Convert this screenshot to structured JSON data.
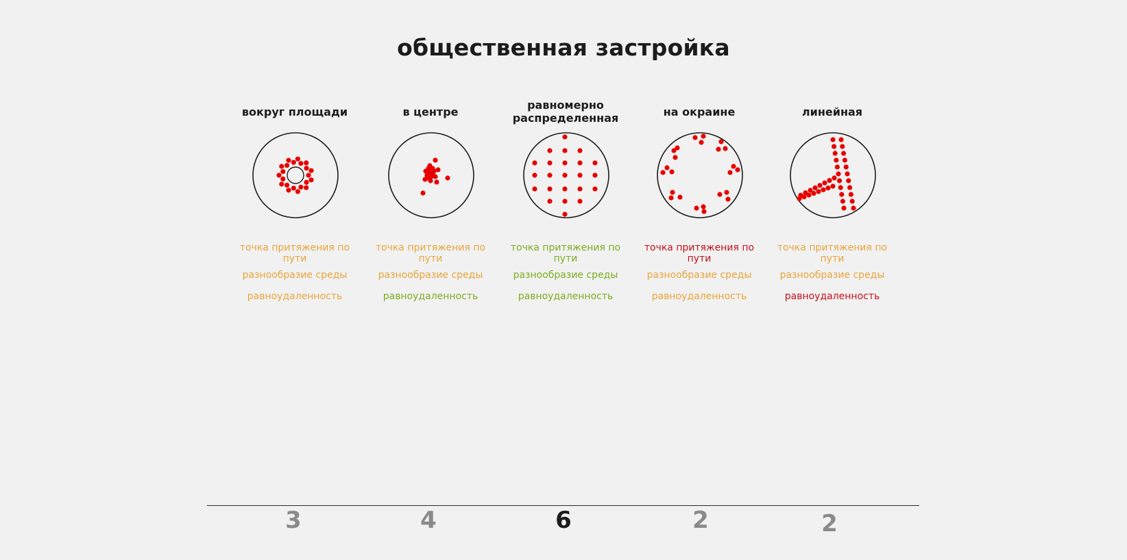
{
  "title": "общественная застройка",
  "colors": {
    "good": "#7cad1e",
    "medium": "#e8a53a",
    "bad": "#c80f1c",
    "dot": "#e60000",
    "score_default": "#8a8a8a",
    "score_best": "#1c1c1c"
  },
  "columns": [
    {
      "title": "вокруг площади",
      "pattern": "ring",
      "criteria": [
        {
          "label": "точка притяжения по пути",
          "rating": "medium"
        },
        {
          "label": "разнообразие среды",
          "rating": "medium"
        },
        {
          "label": "равноудаленность",
          "rating": "medium"
        }
      ],
      "score": "3",
      "best": false
    },
    {
      "title": "в центре",
      "pattern": "center-cluster",
      "criteria": [
        {
          "label": "точка притяжения по пути",
          "rating": "medium"
        },
        {
          "label": "разнообразие среды",
          "rating": "medium"
        },
        {
          "label": "равноудаленность",
          "rating": "good"
        }
      ],
      "score": "4",
      "best": false
    },
    {
      "title": "равномерно распределенная",
      "pattern": "uniform-grid",
      "criteria": [
        {
          "label": "точка притяжения по пути",
          "rating": "good"
        },
        {
          "label": "разнообразие среды",
          "rating": "good"
        },
        {
          "label": "равноудаленность",
          "rating": "good"
        }
      ],
      "score": "6",
      "best": true
    },
    {
      "title": "на окраине",
      "pattern": "periphery",
      "criteria": [
        {
          "label": "точка притяжения по пути",
          "rating": "bad"
        },
        {
          "label": "разнообразие среды",
          "rating": "medium"
        },
        {
          "label": "равноудаленность",
          "rating": "medium"
        }
      ],
      "score": "2",
      "best": false
    },
    {
      "title": "линейная",
      "pattern": "linear",
      "criteria": [
        {
          "label": "точка притяжения по пути",
          "rating": "medium"
        },
        {
          "label": "разнообразие среды",
          "rating": "medium"
        },
        {
          "label": "равноудаленность",
          "rating": "bad"
        }
      ],
      "score": "2",
      "best": false
    }
  ]
}
